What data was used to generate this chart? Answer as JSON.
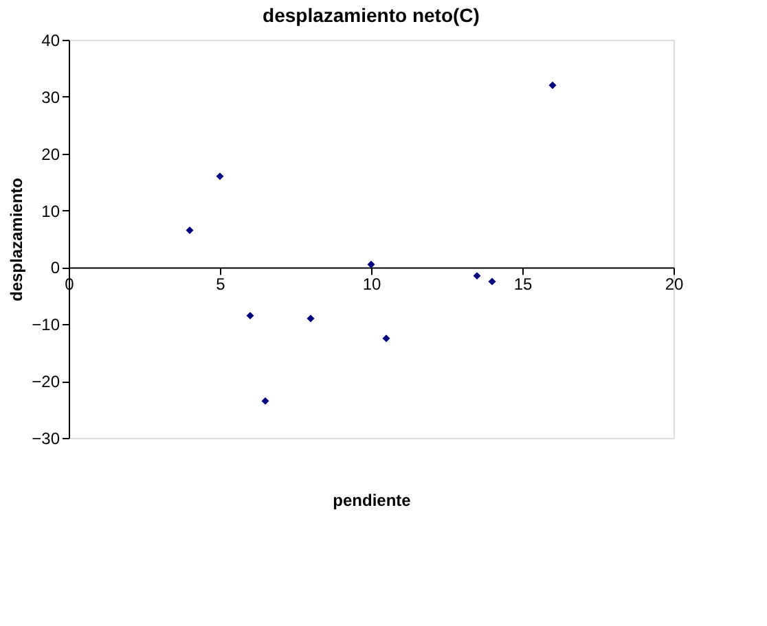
{
  "chart_data": {
    "type": "scatter",
    "title": "desplazamiento neto(C)",
    "xlabel": "pendiente",
    "ylabel": "desplazamiento",
    "x": [
      4,
      5,
      6,
      6.5,
      8,
      10,
      10.5,
      13.5,
      14,
      16
    ],
    "values": [
      6.5,
      16,
      -8.5,
      -23.5,
      -9,
      0.5,
      -12.5,
      -1.5,
      -2.5,
      32
    ],
    "color": "#000080",
    "marker": "diamond",
    "grid": false,
    "xlim": [
      0,
      20
    ],
    "xticks": [
      0,
      5,
      10,
      15,
      20
    ],
    "ylim": [
      -30,
      40
    ],
    "yticks": [
      -30,
      -20,
      -10,
      0,
      10,
      20,
      30,
      40
    ]
  }
}
